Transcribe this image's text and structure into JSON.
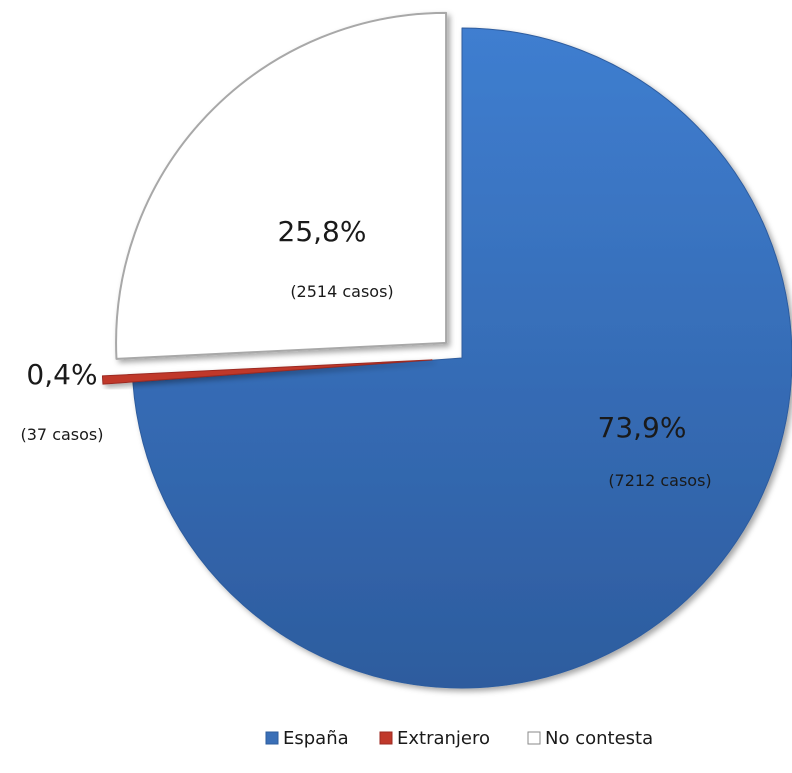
{
  "chart_data": {
    "type": "pie",
    "categories": [
      "España",
      "Extranjero",
      "No contesta"
    ],
    "values": [
      73.9,
      0.4,
      25.8
    ],
    "counts": [
      7212,
      37,
      2514
    ],
    "value_labels": [
      "73,9%",
      "0,4%",
      "25,8%"
    ],
    "count_labels": [
      "(7212 casos)",
      "(37 casos)",
      "(2514 casos)"
    ],
    "colors": [
      "#3a6fb7",
      "#c0392b",
      "#ffffff"
    ],
    "title": "",
    "legend_position": "bottom",
    "exploded": [
      "No contesta",
      "Extranjero"
    ]
  }
}
